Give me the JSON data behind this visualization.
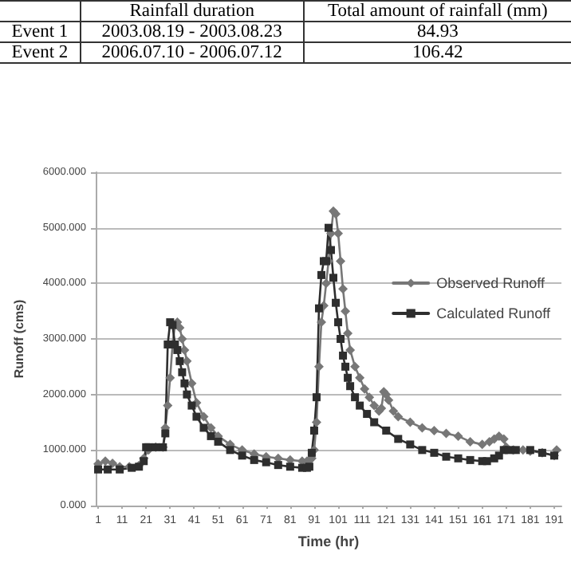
{
  "chart_data": [
    {
      "type": "other",
      "categories": [
        "Rainfall duration",
        "Total amount of rainfall (mm)"
      ],
      "y_categories": [
        "Event 1",
        "Event 2"
      ],
      "cell_labels": [
        [
          "2003.08.19 - 2003.08.23",
          "84.93"
        ],
        [
          "2006.07.10 - 2006.07.12",
          "106.42"
        ]
      ]
    },
    {
      "type": "line",
      "xlabel": "Time (hr)",
      "ylabel": "Runoff (cms)",
      "xlim": [
        0,
        194
      ],
      "xticks": [
        1,
        11,
        21,
        31,
        41,
        51,
        61,
        71,
        81,
        91,
        101,
        111,
        121,
        131,
        141,
        151,
        161,
        171,
        181,
        191
      ],
      "ylim": [
        0,
        6000
      ],
      "yticks": [
        {
          "value": 0,
          "label": "0.000"
        },
        {
          "value": 1000,
          "label": "1000.000"
        },
        {
          "value": 2000,
          "label": "2000.000"
        },
        {
          "value": 3000,
          "label": "3000.000"
        },
        {
          "value": 4000,
          "label": "4000.000"
        },
        {
          "value": 5000,
          "label": "5000.000"
        },
        {
          "value": 6000,
          "label": "6000.000"
        }
      ],
      "grid": "y",
      "legend": "right",
      "line_style": "solid",
      "series": [
        {
          "name": "Observed Runoff",
          "color": "#777777",
          "marker": "diamond",
          "x": [
            1,
            4,
            7,
            10,
            14,
            18,
            20,
            22,
            25,
            28,
            29,
            30,
            31,
            32,
            33,
            34,
            35,
            36,
            37,
            38,
            40,
            42,
            45,
            48,
            51,
            56,
            61,
            66,
            71,
            76,
            81,
            86,
            88,
            89,
            90,
            91,
            92,
            93,
            94,
            95,
            96,
            97,
            98,
            99,
            100,
            101,
            102,
            103,
            104,
            105,
            106,
            108,
            110,
            112,
            114,
            116,
            118,
            119,
            120,
            121,
            122,
            124,
            126,
            131,
            136,
            141,
            146,
            151,
            156,
            161,
            164,
            166,
            168,
            170,
            171,
            174,
            178,
            181,
            186,
            191,
            192
          ],
          "values": [
            750,
            800,
            760,
            700,
            700,
            720,
            850,
            1000,
            1050,
            1050,
            1400,
            1800,
            2300,
            2900,
            3250,
            3300,
            3200,
            3000,
            2800,
            2600,
            2200,
            1850,
            1600,
            1400,
            1250,
            1100,
            1000,
            930,
            880,
            850,
            820,
            800,
            800,
            810,
            850,
            1000,
            1500,
            2500,
            3300,
            3600,
            4000,
            4400,
            4900,
            5300,
            5250,
            4900,
            4400,
            3900,
            3500,
            3100,
            2800,
            2500,
            2300,
            2100,
            1950,
            1800,
            1700,
            1750,
            2050,
            2000,
            1900,
            1700,
            1600,
            1500,
            1400,
            1350,
            1300,
            1250,
            1150,
            1100,
            1150,
            1200,
            1250,
            1200,
            1050,
            1000,
            1000,
            980,
            950,
            900,
            1000
          ]
        },
        {
          "name": "Calculated Runoff",
          "color": "#2e2e2e",
          "marker": "square",
          "x": [
            1,
            5,
            10,
            15,
            18,
            20,
            21,
            22,
            25,
            28,
            29,
            30,
            31,
            32,
            33,
            34,
            35,
            36,
            37,
            38,
            40,
            42,
            45,
            48,
            51,
            56,
            61,
            66,
            71,
            76,
            81,
            86,
            88,
            89,
            90,
            91,
            92,
            93,
            94,
            95,
            96,
            97,
            98,
            99,
            100,
            101,
            102,
            103,
            104,
            105,
            106,
            108,
            110,
            113,
            116,
            121,
            126,
            131,
            136,
            141,
            146,
            151,
            156,
            161,
            163,
            166,
            168,
            170,
            172,
            175,
            181,
            186,
            191
          ],
          "values": [
            650,
            650,
            650,
            680,
            700,
            800,
            1050,
            1050,
            1050,
            1050,
            1300,
            2900,
            3300,
            3250,
            2900,
            2800,
            2600,
            2400,
            2200,
            2000,
            1800,
            1600,
            1400,
            1250,
            1150,
            1000,
            900,
            820,
            780,
            730,
            700,
            680,
            680,
            700,
            950,
            1350,
            1950,
            3550,
            4150,
            4400,
            4400,
            5000,
            4600,
            4100,
            3650,
            3300,
            3000,
            2700,
            2500,
            2300,
            2150,
            1950,
            1800,
            1650,
            1500,
            1350,
            1200,
            1100,
            1000,
            950,
            880,
            850,
            820,
            800,
            800,
            850,
            900,
            1000,
            1000,
            1000,
            1000,
            950,
            900
          ]
        }
      ]
    }
  ]
}
